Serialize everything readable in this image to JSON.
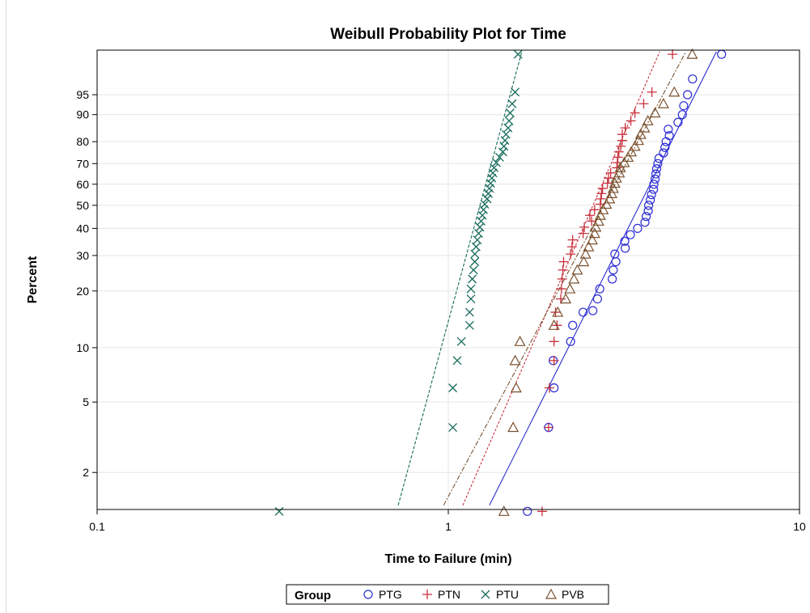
{
  "chart_data": {
    "type": "scatter",
    "title": "Weibull Probability Plot for Time",
    "xlabel": "Time to Failure (min)",
    "ylabel": "Percent",
    "x_scale": "log",
    "y_scale": "weibull",
    "xlim": [
      0.1,
      10
    ],
    "x_ticks": [
      0.1,
      1,
      10
    ],
    "x_tick_labels": [
      "0.1",
      "1",
      "10"
    ],
    "y_ticks": [
      2,
      5,
      10,
      20,
      30,
      40,
      50,
      60,
      70,
      80,
      90,
      95
    ],
    "y_tick_labels": [
      "2",
      "5",
      "10",
      "20",
      "30",
      "40",
      "50",
      "60",
      "70",
      "80",
      "90",
      "95"
    ],
    "grid": true,
    "legend": {
      "title": "Group",
      "position": "bottom",
      "entries": [
        {
          "name": "PTG",
          "marker": "circle",
          "color": "#2b2bd4"
        },
        {
          "name": "PTN",
          "marker": "plus",
          "color": "#c8303c"
        },
        {
          "name": "PTU",
          "marker": "x",
          "color": "#166b5b"
        },
        {
          "name": "PVB",
          "marker": "triangle",
          "color": "#7a5230"
        }
      ]
    },
    "series": [
      {
        "name": "PTG",
        "color": "#2b2bd4",
        "marker": "circle",
        "fit_line": [
          [
            1.31,
            1.3
          ],
          [
            5.8,
            99.5
          ]
        ],
        "points": [
          [
            1.68,
            1.2
          ],
          [
            1.93,
            3.6
          ],
          [
            2.0,
            6
          ],
          [
            1.99,
            8.5
          ],
          [
            2.23,
            10.8
          ],
          [
            2.26,
            13.2
          ],
          [
            2.42,
            15.5
          ],
          [
            2.58,
            15.8
          ],
          [
            2.66,
            18.2
          ],
          [
            2.7,
            20.5
          ],
          [
            2.93,
            23
          ],
          [
            2.95,
            25.5
          ],
          [
            3.0,
            28
          ],
          [
            2.98,
            30.5
          ],
          [
            3.19,
            32.5
          ],
          [
            3.18,
            35
          ],
          [
            3.3,
            37.5
          ],
          [
            3.46,
            40
          ],
          [
            3.63,
            42.5
          ],
          [
            3.66,
            45
          ],
          [
            3.71,
            47.5
          ],
          [
            3.72,
            50
          ],
          [
            3.76,
            52.5
          ],
          [
            3.79,
            55
          ],
          [
            3.84,
            57.5
          ],
          [
            3.85,
            60
          ],
          [
            3.88,
            62.5
          ],
          [
            3.9,
            65
          ],
          [
            3.92,
            67.5
          ],
          [
            3.95,
            70
          ],
          [
            3.98,
            72.5
          ],
          [
            4.1,
            75
          ],
          [
            4.14,
            77.5
          ],
          [
            4.17,
            80
          ],
          [
            4.26,
            82.5
          ],
          [
            4.23,
            85
          ],
          [
            4.51,
            87.5
          ],
          [
            4.64,
            90
          ],
          [
            4.68,
            92.5
          ],
          [
            4.8,
            95
          ],
          [
            4.96,
            97.5
          ],
          [
            6.0,
            99.4
          ]
        ]
      },
      {
        "name": "PTN",
        "color": "#c8303c",
        "marker": "plus",
        "fit_line": [
          [
            1.1,
            1.3
          ],
          [
            4.0,
            99.5
          ]
        ],
        "points": [
          [
            1.85,
            1.2
          ],
          [
            1.93,
            3.6
          ],
          [
            1.94,
            6
          ],
          [
            2.0,
            8.5
          ],
          [
            2.0,
            10.8
          ],
          [
            2.04,
            13.2
          ],
          [
            2.02,
            15.5
          ],
          [
            2.09,
            18.2
          ],
          [
            2.1,
            20.5
          ],
          [
            2.11,
            23
          ],
          [
            2.12,
            25.5
          ],
          [
            2.13,
            28
          ],
          [
            2.23,
            30.5
          ],
          [
            2.25,
            33
          ],
          [
            2.26,
            35.5
          ],
          [
            2.42,
            38
          ],
          [
            2.44,
            40.5
          ],
          [
            2.56,
            43
          ],
          [
            2.53,
            45.5
          ],
          [
            2.61,
            48
          ],
          [
            2.71,
            50.5
          ],
          [
            2.72,
            53
          ],
          [
            2.73,
            55.5
          ],
          [
            2.75,
            58
          ],
          [
            2.84,
            60.5
          ],
          [
            2.86,
            63
          ],
          [
            2.9,
            65.5
          ],
          [
            3.02,
            68
          ],
          [
            3.03,
            70.5
          ],
          [
            3.04,
            73
          ],
          [
            3.06,
            75.5
          ],
          [
            3.1,
            78
          ],
          [
            3.13,
            80.5
          ],
          [
            3.13,
            83
          ],
          [
            3.19,
            85.5
          ],
          [
            3.31,
            88
          ],
          [
            3.4,
            90.5
          ],
          [
            3.6,
            93
          ],
          [
            3.8,
            95.5
          ],
          [
            4.35,
            99.4
          ]
        ]
      },
      {
        "name": "PTU",
        "color": "#166b5b",
        "marker": "x",
        "fit_line": [
          [
            0.72,
            1.3
          ],
          [
            1.62,
            99.5
          ]
        ],
        "points": [
          [
            0.33,
            1.2
          ],
          [
            1.03,
            3.6
          ],
          [
            1.03,
            6
          ],
          [
            1.06,
            8.5
          ],
          [
            1.09,
            10.8
          ],
          [
            1.15,
            13.2
          ],
          [
            1.15,
            15.5
          ],
          [
            1.16,
            18.2
          ],
          [
            1.16,
            20.5
          ],
          [
            1.17,
            23
          ],
          [
            1.18,
            25.5
          ],
          [
            1.19,
            28
          ],
          [
            1.19,
            30.5
          ],
          [
            1.2,
            33
          ],
          [
            1.21,
            35.5
          ],
          [
            1.22,
            38
          ],
          [
            1.23,
            40.5
          ],
          [
            1.24,
            43
          ],
          [
            1.25,
            45.5
          ],
          [
            1.26,
            48
          ],
          [
            1.27,
            50.5
          ],
          [
            1.29,
            53
          ],
          [
            1.3,
            55.5
          ],
          [
            1.31,
            58
          ],
          [
            1.32,
            60.5
          ],
          [
            1.33,
            63
          ],
          [
            1.34,
            65.5
          ],
          [
            1.35,
            68
          ],
          [
            1.37,
            70.5
          ],
          [
            1.4,
            73
          ],
          [
            1.43,
            75.5
          ],
          [
            1.44,
            78
          ],
          [
            1.45,
            80.5
          ],
          [
            1.46,
            83
          ],
          [
            1.48,
            85.5
          ],
          [
            1.49,
            88
          ],
          [
            1.5,
            90.5
          ],
          [
            1.52,
            93
          ],
          [
            1.55,
            95.5
          ],
          [
            1.58,
            99.4
          ]
        ]
      },
      {
        "name": "PVB",
        "color": "#7a5230",
        "marker": "triangle",
        "fit_line": [
          [
            0.97,
            1.3
          ],
          [
            4.75,
            99.5
          ]
        ],
        "points": [
          [
            1.44,
            1.2
          ],
          [
            1.53,
            3.6
          ],
          [
            1.56,
            6
          ],
          [
            1.55,
            8.5
          ],
          [
            1.6,
            10.8
          ],
          [
            2.0,
            13.2
          ],
          [
            2.05,
            15.5
          ],
          [
            2.16,
            18.2
          ],
          [
            2.22,
            20.5
          ],
          [
            2.28,
            23
          ],
          [
            2.33,
            25.5
          ],
          [
            2.43,
            28
          ],
          [
            2.46,
            30.5
          ],
          [
            2.51,
            33
          ],
          [
            2.57,
            35.5
          ],
          [
            2.61,
            38
          ],
          [
            2.63,
            40.5
          ],
          [
            2.68,
            43
          ],
          [
            2.71,
            45.5
          ],
          [
            2.76,
            48
          ],
          [
            2.82,
            50.5
          ],
          [
            2.88,
            53
          ],
          [
            2.92,
            55.5
          ],
          [
            2.95,
            58
          ],
          [
            2.98,
            60.5
          ],
          [
            3.01,
            63
          ],
          [
            3.07,
            65.5
          ],
          [
            3.09,
            68
          ],
          [
            3.17,
            70.5
          ],
          [
            3.25,
            73
          ],
          [
            3.32,
            75.5
          ],
          [
            3.4,
            78
          ],
          [
            3.48,
            80.5
          ],
          [
            3.53,
            83
          ],
          [
            3.62,
            85.5
          ],
          [
            3.7,
            88
          ],
          [
            3.88,
            90.5
          ],
          [
            4.1,
            93
          ],
          [
            4.4,
            95.5
          ],
          [
            4.95,
            99.4
          ]
        ]
      }
    ]
  }
}
